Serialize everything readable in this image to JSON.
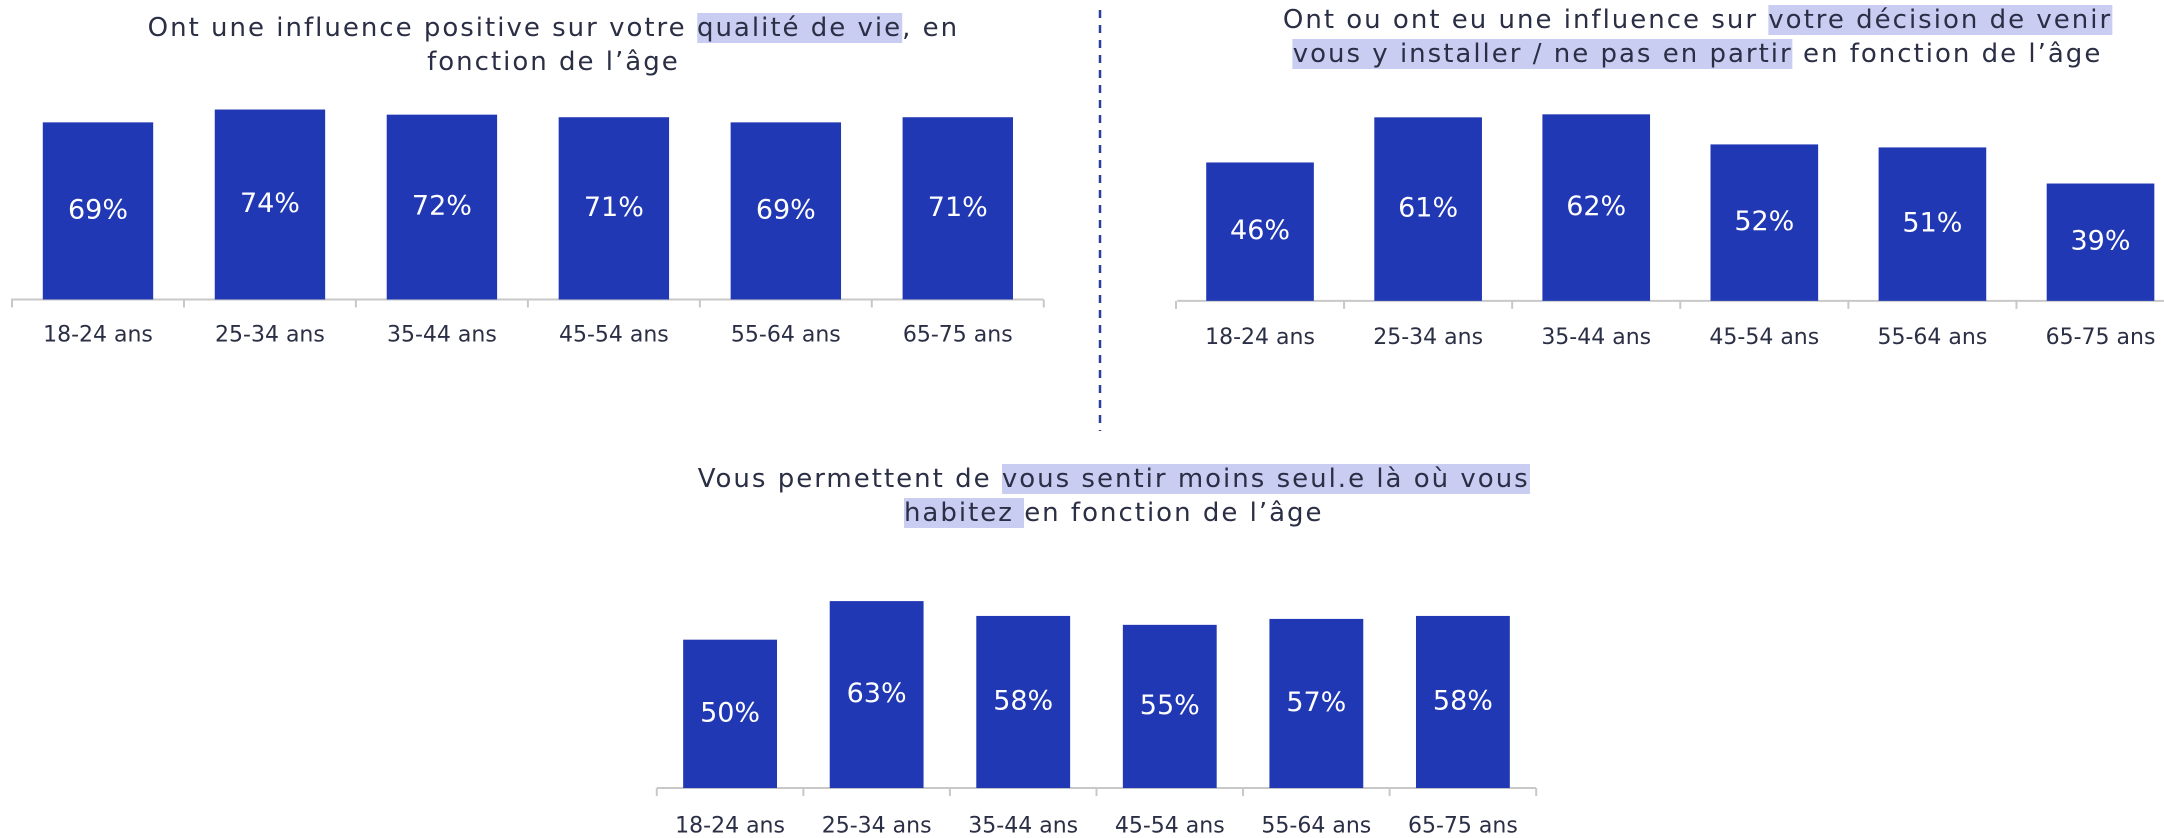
{
  "chart_data": [
    {
      "type": "bar",
      "title_lines": [
        [
          {
            "text": "Ont une influence positive sur votre ",
            "highlight": false
          },
          {
            "text": "qualité de vie",
            "highlight": true
          },
          {
            "text": ", en",
            "highlight": false
          }
        ],
        [
          {
            "text": "fonction de l’âge",
            "highlight": false
          }
        ]
      ],
      "categories": [
        "18-24 ans",
        "25-34 ans",
        "35-44 ans",
        "45-54 ans",
        "55-64 ans",
        "65-75 ans"
      ],
      "values": [
        69,
        74,
        72,
        71,
        69,
        71
      ],
      "value_labels": [
        "69%",
        "74%",
        "72%",
        "71%",
        "69%",
        "71%"
      ],
      "color": "#2138b4",
      "ylim": [
        0,
        100
      ]
    },
    {
      "type": "bar",
      "title_lines": [
        [
          {
            "text": "Ont ou ont eu une influence sur ",
            "highlight": false
          },
          {
            "text": "votre décision de venir",
            "highlight": true
          }
        ],
        [
          {
            "text": "vous y installer / ne pas en partir",
            "highlight": true
          },
          {
            "text": " en fonction de l’âge",
            "highlight": false
          }
        ]
      ],
      "categories": [
        "18-24 ans",
        "25-34 ans",
        "35-44 ans",
        "45-54 ans",
        "55-64 ans",
        "65-75 ans"
      ],
      "values": [
        46,
        61,
        62,
        52,
        51,
        39
      ],
      "value_labels": [
        "46%",
        "61%",
        "62%",
        "52%",
        "51%",
        "39%"
      ],
      "color": "#2138b4",
      "ylim": [
        0,
        100
      ]
    },
    {
      "type": "bar",
      "title_lines": [
        [
          {
            "text": "Vous permettent de ",
            "highlight": false
          },
          {
            "text": "vous sentir moins seul.e là où vous ",
            "highlight": true
          }
        ],
        [
          {
            "text": "habitez ",
            "highlight": true
          },
          {
            "text": "en fonction de l’âge",
            "highlight": false
          }
        ]
      ],
      "categories": [
        "18-24 ans",
        "25-34 ans",
        "35-44 ans",
        "45-54 ans",
        "55-64 ans",
        "65-75 ans"
      ],
      "values": [
        50,
        63,
        58,
        55,
        57,
        58
      ],
      "value_labels": [
        "50%",
        "63%",
        "58%",
        "55%",
        "57%",
        "58%"
      ],
      "color": "#2138b4",
      "ylim": [
        0,
        100
      ]
    }
  ]
}
